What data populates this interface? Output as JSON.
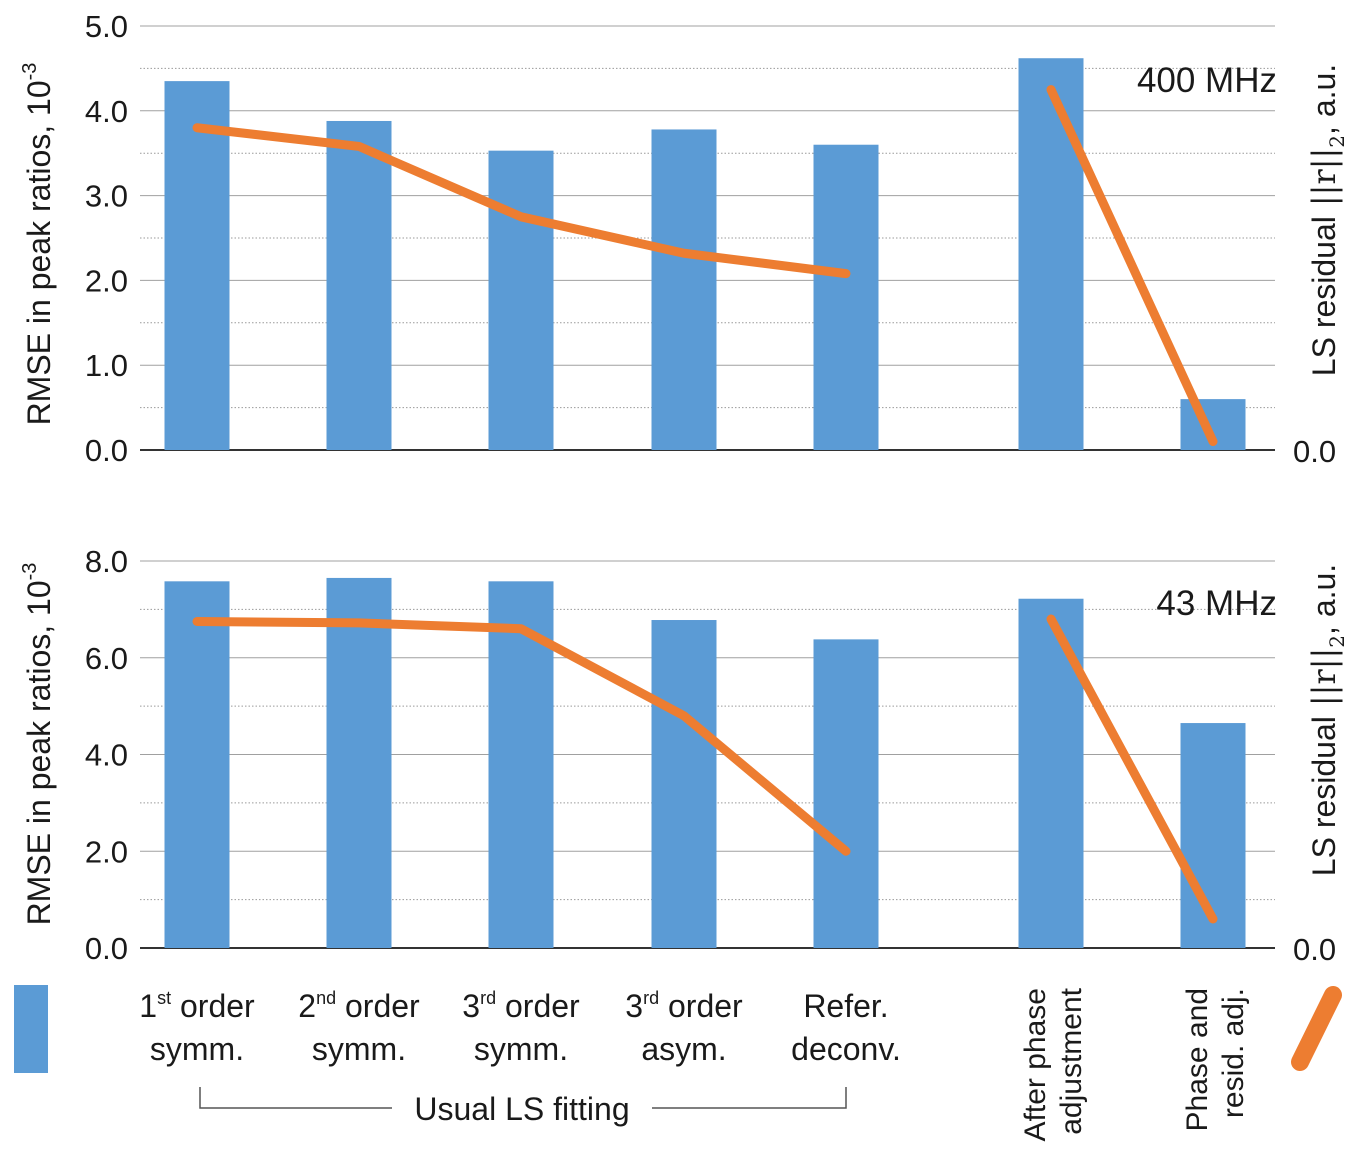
{
  "chart_data": [
    {
      "type": "bar",
      "panel": "top",
      "annotation": "400 MHz",
      "ylabel_left": "RMSE in peak ratios, 10",
      "ylabel_left_exp": "-3",
      "ylabel_right": "LS residual",
      "ylabel_right_math": "||r||",
      "ylabel_right_sub": "2",
      "ylabel_right_unit": ", a.u.",
      "ylim": [
        0,
        5
      ],
      "yticks": [
        "0.0",
        "1.0",
        "2.0",
        "3.0",
        "4.0",
        "5.0"
      ],
      "yticks_values": [
        0,
        1,
        2,
        3,
        4,
        5
      ],
      "right_tick": "0.0",
      "minor_grid_step": 0.5,
      "grid": true,
      "bar_color": "#5b9bd5",
      "line_color": "#ed7d31",
      "categories": [
        "1st order symm.",
        "2nd order symm.",
        "3rd order symm.",
        "3rd order asym.",
        "Refer. deconv.",
        "After phase adjustment",
        "Phase and resid. adj."
      ],
      "bars": [
        4.35,
        3.88,
        3.53,
        3.78,
        3.6,
        4.62,
        0.6
      ],
      "line_segments": [
        {
          "indices": [
            0,
            1,
            2,
            3,
            4
          ],
          "values": [
            3.8,
            3.58,
            2.75,
            2.32,
            2.08
          ]
        },
        {
          "indices": [
            5,
            6
          ],
          "values": [
            4.25,
            0.1
          ]
        }
      ]
    },
    {
      "type": "bar",
      "panel": "bottom",
      "annotation": "43 MHz",
      "ylabel_left": "RMSE in peak ratios, 10",
      "ylabel_left_exp": "-3",
      "ylabel_right": "LS residual",
      "ylabel_right_math": "||r||",
      "ylabel_right_sub": "2",
      "ylabel_right_unit": ", a.u.",
      "ylim": [
        0,
        8
      ],
      "yticks": [
        "0.0",
        "2.0",
        "4.0",
        "6.0",
        "8.0"
      ],
      "yticks_values": [
        0,
        2,
        4,
        6,
        8
      ],
      "right_tick": "0.0",
      "minor_grid_step": 1,
      "grid": true,
      "bar_color": "#5b9bd5",
      "line_color": "#ed7d31",
      "categories": [
        "1st order symm.",
        "2nd order symm.",
        "3rd order symm.",
        "3rd order asym.",
        "Refer. deconv.",
        "After phase adjustment",
        "Phase and resid. adj."
      ],
      "bars": [
        7.58,
        7.65,
        7.58,
        6.78,
        6.38,
        7.22,
        4.65
      ],
      "line_segments": [
        {
          "indices": [
            0,
            1,
            2,
            3,
            4
          ],
          "values": [
            6.75,
            6.72,
            6.6,
            4.8,
            2.0
          ]
        },
        {
          "indices": [
            5,
            6
          ],
          "values": [
            6.8,
            0.6
          ]
        }
      ]
    }
  ],
  "x_labels": [
    {
      "num": "1",
      "sup": "st",
      "rest": " order",
      "line2": "symm."
    },
    {
      "num": "2",
      "sup": "nd",
      "rest": " order",
      "line2": "symm."
    },
    {
      "num": "3",
      "sup": "rd",
      "rest": " order",
      "line2": "symm."
    },
    {
      "num": "3",
      "sup": "rd",
      "rest": " order",
      "line2": "asym."
    },
    {
      "num": "",
      "sup": "",
      "rest": "Refer.",
      "line2": "deconv."
    }
  ],
  "x_labels_rotated": [
    {
      "line1": "After phase",
      "line2": "adjustment"
    },
    {
      "line1": "Phase and",
      "line2": "resid. adj."
    }
  ],
  "group_bracket_label": "Usual LS fitting"
}
